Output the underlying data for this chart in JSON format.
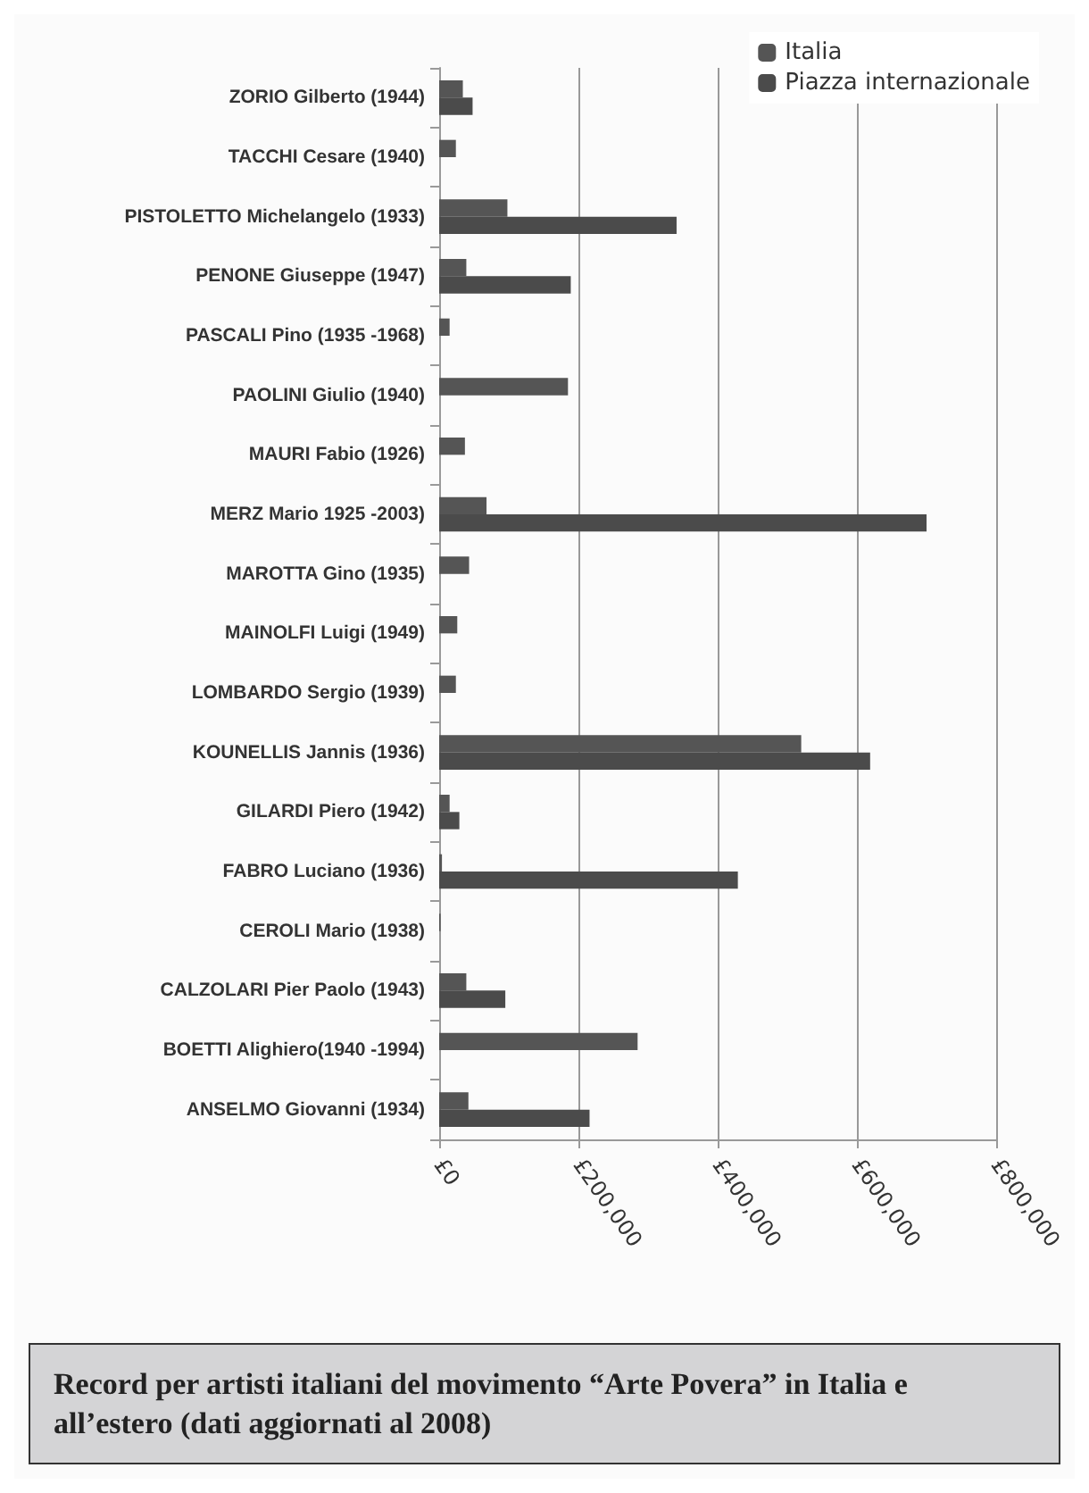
{
  "chart_data": {
    "type": "bar",
    "orientation": "horizontal",
    "title": "Record per artisti italiani del movimento “Arte Povera” in Italia e all’estero (dati aggiornati al 2008)",
    "categories": [
      "ZORIO Gilberto (1944)",
      "TACCHI Cesare (1940)",
      "PISTOLETTO Michelangelo (1933)",
      "PENONE Giuseppe (1947)",
      "PASCALI Pino (1935 -1968)",
      "PAOLINI Giulio (1940)",
      "MAURI Fabio (1926)",
      "MERZ Mario 1925 -2003)",
      "MAROTTA Gino (1935)",
      "MAINOLFI Luigi (1949)",
      "LOMBARDO Sergio (1939)",
      "KOUNELLIS Jannis (1936)",
      "GILARDI Piero (1942)",
      "FABRO Luciano (1936)",
      "CEROLI Mario (1938)",
      "CALZOLARI Pier Paolo (1943)",
      "BOETTI Alighiero(1940 -1994)",
      "ANSELMO Giovanni (1934)"
    ],
    "series": [
      {
        "name": "Italia",
        "color": "#555555",
        "values": [
          34000,
          24000,
          98000,
          39000,
          15000,
          185000,
          37000,
          68000,
          43000,
          26000,
          24000,
          520000,
          15000,
          4000,
          2000,
          39000,
          285000,
          42000
        ]
      },
      {
        "name": "Piazza internazionale",
        "color": "#4b4b4b",
        "values": [
          48000,
          null,
          341000,
          189000,
          null,
          null,
          null,
          700000,
          null,
          null,
          null,
          619000,
          29000,
          429000,
          null,
          95000,
          null,
          216000
        ]
      }
    ],
    "xlim": [
      0,
      800000
    ],
    "xticks": [
      {
        "value": 0,
        "label": "£0"
      },
      {
        "value": 200000,
        "label": "£200,000"
      },
      {
        "value": 400000,
        "label": "£400,000"
      },
      {
        "value": 600000,
        "label": "£600,000"
      },
      {
        "value": 800000,
        "label": "£800,000"
      }
    ],
    "grid": "x",
    "legend": "top right"
  }
}
